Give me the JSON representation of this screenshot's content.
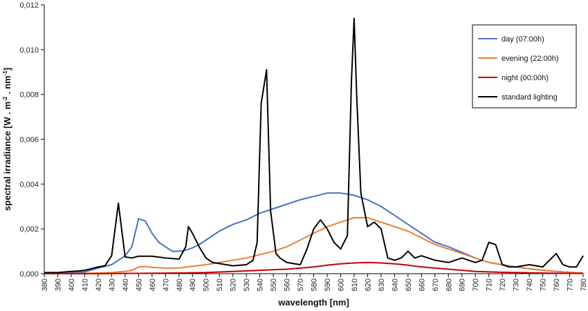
{
  "chart_data": {
    "type": "line",
    "xlabel": "wavelength [nm]",
    "ylabel": {
      "main": "spectral irradiance [W . m",
      "sup1": "-2",
      "mid": " . nm",
      "sup2": "-1",
      "end": "]"
    },
    "xlim": [
      380,
      780
    ],
    "ylim": [
      0,
      0.012
    ],
    "x_ticks": [
      380,
      390,
      400,
      410,
      420,
      430,
      440,
      450,
      460,
      470,
      480,
      490,
      500,
      510,
      520,
      530,
      540,
      550,
      560,
      570,
      580,
      590,
      600,
      610,
      620,
      630,
      640,
      650,
      660,
      670,
      680,
      690,
      700,
      710,
      720,
      730,
      740,
      750,
      760,
      770,
      780
    ],
    "y_ticks": [
      0,
      0.002,
      0.004,
      0.006,
      0.008,
      0.01,
      0.012
    ],
    "y_tick_labels": [
      "0,000",
      "0,002",
      "0,004",
      "0,006",
      "0,008",
      "0,010",
      "0,012"
    ],
    "grid": false,
    "legend_position": "top-right",
    "series": [
      {
        "name": "day (07:00h)",
        "color": "#4472C4",
        "points": [
          [
            380,
            1e-05
          ],
          [
            390,
            2e-05
          ],
          [
            400,
            4e-05
          ],
          [
            410,
            8e-05
          ],
          [
            420,
            0.00025
          ],
          [
            430,
            0.0004
          ],
          [
            440,
            0.0008
          ],
          [
            445,
            0.0012
          ],
          [
            450,
            0.00245
          ],
          [
            455,
            0.00235
          ],
          [
            460,
            0.0018
          ],
          [
            465,
            0.0014
          ],
          [
            470,
            0.0012
          ],
          [
            475,
            0.001
          ],
          [
            480,
            0.001
          ],
          [
            485,
            0.00105
          ],
          [
            490,
            0.00115
          ],
          [
            495,
            0.0013
          ],
          [
            500,
            0.0015
          ],
          [
            510,
            0.0019
          ],
          [
            520,
            0.0022
          ],
          [
            530,
            0.0024
          ],
          [
            540,
            0.0027
          ],
          [
            550,
            0.0029
          ],
          [
            560,
            0.0031
          ],
          [
            570,
            0.0033
          ],
          [
            580,
            0.00345
          ],
          [
            590,
            0.0036
          ],
          [
            600,
            0.0036
          ],
          [
            610,
            0.0035
          ],
          [
            620,
            0.0033
          ],
          [
            630,
            0.003
          ],
          [
            640,
            0.0026
          ],
          [
            650,
            0.0022
          ],
          [
            660,
            0.0018
          ],
          [
            670,
            0.0014
          ],
          [
            680,
            0.0012
          ],
          [
            690,
            0.00095
          ],
          [
            700,
            0.0007
          ],
          [
            710,
            0.0005
          ],
          [
            720,
            0.0004
          ],
          [
            730,
            0.0003
          ],
          [
            740,
            0.00022
          ],
          [
            750,
            0.00015
          ],
          [
            760,
            0.0001
          ],
          [
            770,
            6e-05
          ],
          [
            780,
            3e-05
          ]
        ]
      },
      {
        "name": "evening (22:00h)",
        "color": "#ED7D31",
        "points": [
          [
            380,
            1e-05
          ],
          [
            390,
            1e-05
          ],
          [
            400,
            1e-05
          ],
          [
            410,
            2e-05
          ],
          [
            420,
            3e-05
          ],
          [
            430,
            5e-05
          ],
          [
            440,
            0.0001
          ],
          [
            445,
            0.00015
          ],
          [
            450,
            0.0003
          ],
          [
            455,
            0.00032
          ],
          [
            460,
            0.00028
          ],
          [
            470,
            0.00025
          ],
          [
            480,
            0.00025
          ],
          [
            490,
            0.00033
          ],
          [
            500,
            0.0004
          ],
          [
            510,
            0.0005
          ],
          [
            520,
            0.0006
          ],
          [
            530,
            0.0007
          ],
          [
            540,
            0.00085
          ],
          [
            550,
            0.001
          ],
          [
            560,
            0.0012
          ],
          [
            570,
            0.0015
          ],
          [
            580,
            0.0018
          ],
          [
            590,
            0.0021
          ],
          [
            600,
            0.0023
          ],
          [
            610,
            0.0025
          ],
          [
            615,
            0.0025
          ],
          [
            620,
            0.0025
          ],
          [
            630,
            0.0023
          ],
          [
            640,
            0.0021
          ],
          [
            650,
            0.0019
          ],
          [
            660,
            0.0016
          ],
          [
            670,
            0.0013
          ],
          [
            680,
            0.0011
          ],
          [
            690,
            0.0009
          ],
          [
            700,
            0.0007
          ],
          [
            710,
            0.0005
          ],
          [
            720,
            0.0004
          ],
          [
            730,
            0.0003
          ],
          [
            740,
            0.00022
          ],
          [
            750,
            0.00015
          ],
          [
            760,
            0.0001
          ],
          [
            770,
            6e-05
          ],
          [
            780,
            3e-05
          ]
        ]
      },
      {
        "name": "night (00:00h)",
        "color": "#C00000",
        "points": [
          [
            380,
            0.0
          ],
          [
            400,
            0.0
          ],
          [
            420,
            0.0
          ],
          [
            440,
            1e-05
          ],
          [
            460,
            2e-05
          ],
          [
            480,
            3e-05
          ],
          [
            500,
            5e-05
          ],
          [
            520,
            0.0001
          ],
          [
            540,
            0.00015
          ],
          [
            560,
            0.0002
          ],
          [
            580,
            0.0003
          ],
          [
            590,
            0.00038
          ],
          [
            600,
            0.00044
          ],
          [
            610,
            0.00048
          ],
          [
            620,
            0.0005
          ],
          [
            630,
            0.00048
          ],
          [
            640,
            0.00044
          ],
          [
            650,
            0.00038
          ],
          [
            660,
            0.0003
          ],
          [
            670,
            0.00025
          ],
          [
            680,
            0.0002
          ],
          [
            690,
            0.00015
          ],
          [
            700,
            0.0001
          ],
          [
            720,
            6e-05
          ],
          [
            740,
            4e-05
          ],
          [
            760,
            2e-05
          ],
          [
            780,
            1e-05
          ]
        ]
      },
      {
        "name": "standard lighting",
        "color": "#000000",
        "points": [
          [
            380,
            5e-05
          ],
          [
            390,
            5e-05
          ],
          [
            400,
            0.0001
          ],
          [
            405,
            0.00012
          ],
          [
            410,
            0.00015
          ],
          [
            420,
            0.0003
          ],
          [
            425,
            0.00035
          ],
          [
            430,
            0.0008
          ],
          [
            435,
            0.00315
          ],
          [
            440,
            0.00075
          ],
          [
            445,
            0.0007
          ],
          [
            450,
            0.00078
          ],
          [
            460,
            0.00078
          ],
          [
            470,
            0.0007
          ],
          [
            480,
            0.00065
          ],
          [
            485,
            0.0012
          ],
          [
            487,
            0.0021
          ],
          [
            490,
            0.0018
          ],
          [
            495,
            0.0012
          ],
          [
            500,
            0.0007
          ],
          [
            505,
            0.0005
          ],
          [
            510,
            0.00045
          ],
          [
            520,
            0.00035
          ],
          [
            530,
            0.0004
          ],
          [
            535,
            0.0006
          ],
          [
            538,
            0.0014
          ],
          [
            541,
            0.0076
          ],
          [
            545,
            0.0091
          ],
          [
            548,
            0.0028
          ],
          [
            552,
            0.0009
          ],
          [
            555,
            0.0007
          ],
          [
            560,
            0.0005
          ],
          [
            570,
            0.0004
          ],
          [
            575,
            0.0011
          ],
          [
            580,
            0.002
          ],
          [
            585,
            0.0024
          ],
          [
            590,
            0.002
          ],
          [
            595,
            0.0014
          ],
          [
            600,
            0.0011
          ],
          [
            605,
            0.0017
          ],
          [
            608,
            0.0086
          ],
          [
            610,
            0.0114
          ],
          [
            612,
            0.0078
          ],
          [
            615,
            0.0036
          ],
          [
            620,
            0.0021
          ],
          [
            625,
            0.0023
          ],
          [
            630,
            0.002
          ],
          [
            635,
            0.0007
          ],
          [
            640,
            0.0006
          ],
          [
            645,
            0.0007
          ],
          [
            650,
            0.001
          ],
          [
            655,
            0.0007
          ],
          [
            660,
            0.0008
          ],
          [
            670,
            0.0006
          ],
          [
            680,
            0.0005
          ],
          [
            690,
            0.0007
          ],
          [
            700,
            0.0005
          ],
          [
            705,
            0.0006
          ],
          [
            710,
            0.0014
          ],
          [
            715,
            0.0013
          ],
          [
            720,
            0.0004
          ],
          [
            725,
            0.0003
          ],
          [
            730,
            0.0003
          ],
          [
            740,
            0.0004
          ],
          [
            750,
            0.0003
          ],
          [
            755,
            0.0006
          ],
          [
            760,
            0.0009
          ],
          [
            765,
            0.0004
          ],
          [
            770,
            0.0003
          ],
          [
            775,
            0.0003
          ],
          [
            780,
            0.0008
          ]
        ]
      }
    ]
  }
}
